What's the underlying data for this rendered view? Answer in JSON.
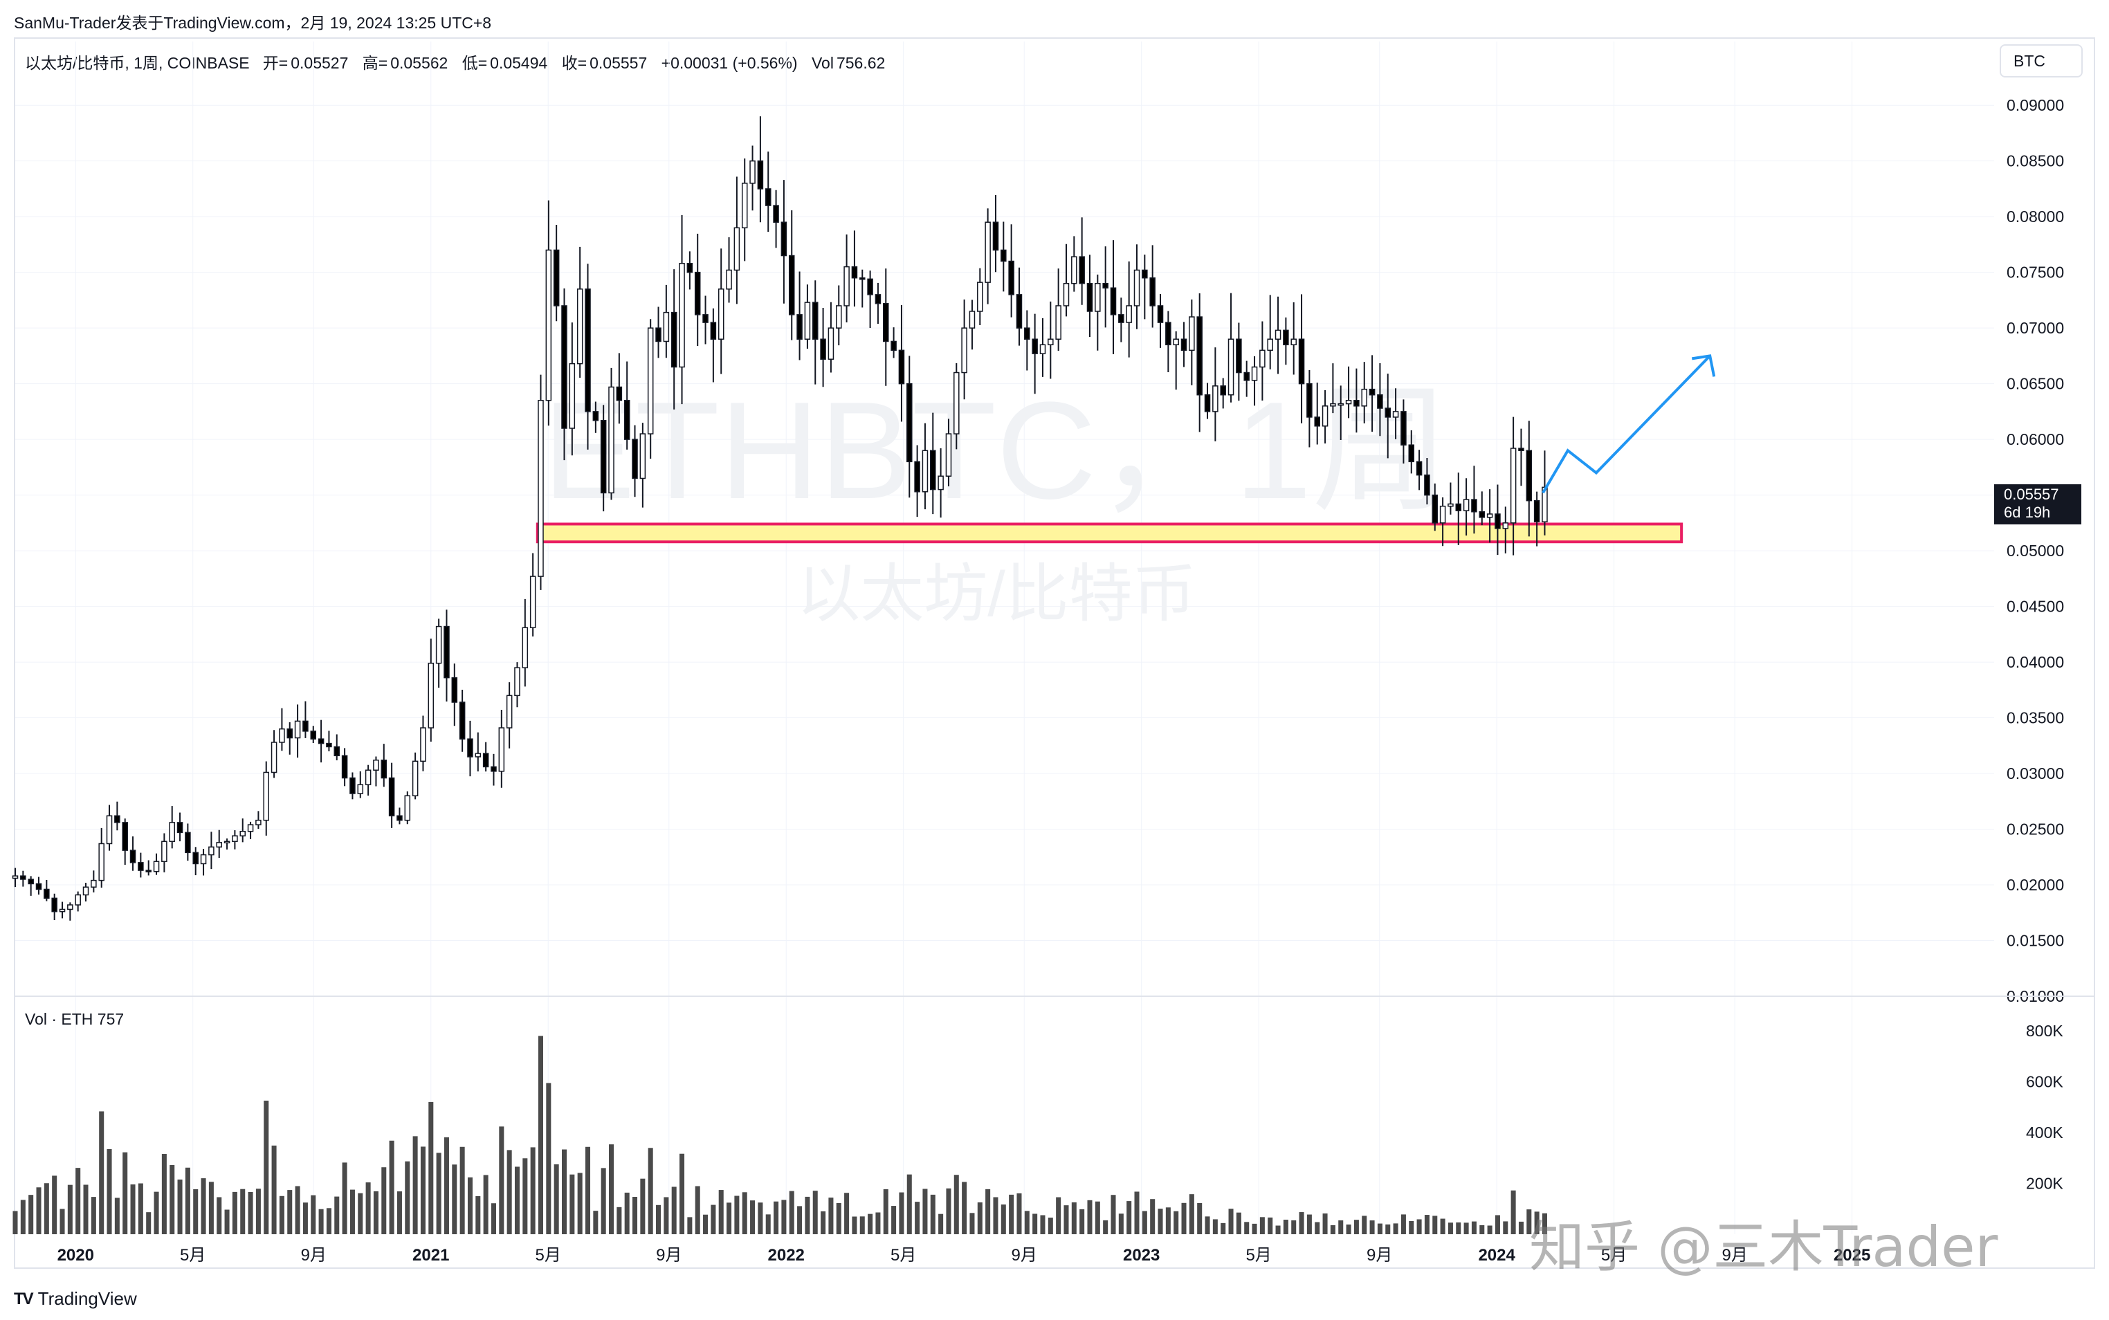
{
  "header": {
    "post_line": "SanMu-Trader发表于TradingView.com，2月 19, 2024 13:25 UTC+8"
  },
  "legend": {
    "symbol": "以太坊/比特币, 1周, COINBASE",
    "open_label": "开=",
    "open_value": "0.05527",
    "high_label": "高=",
    "high_value": "0.05562",
    "low_label": "低=",
    "low_value": "0.05494",
    "close_label": "收=",
    "close_value": "0.05557",
    "change": "+0.00031 (+0.56%)",
    "vol_label": "Vol",
    "vol_value": "756.62"
  },
  "currency_button": "BTC",
  "watermark": {
    "big": "ETHBTC，1周",
    "small": "以太坊/比特币"
  },
  "price_tag": {
    "price": "0.05557",
    "countdown": "6d 19h"
  },
  "volume_legend": "Vol · ETH  757",
  "footer_logo": "TradingView",
  "corner_watermark": "知乎 @三木Trader",
  "colors": {
    "up_body": "#ffffff",
    "down_body": "#000000",
    "wick": "#131722",
    "volume": "#4a4a4a",
    "support_fill": "#fff59d",
    "support_border": "#e91e63",
    "projection": "#2196f3",
    "grid": "#f0f3fa"
  },
  "chart_data": [
    {
      "type": "candlestick",
      "title": "以太坊/比特币, 1周, COINBASE",
      "y_axis_labels": [
        "0.09000",
        "0.08500",
        "0.08000",
        "0.07500",
        "0.07000",
        "0.06500",
        "0.06000",
        "0.05500",
        "0.05000",
        "0.04500",
        "0.04000",
        "0.03500",
        "0.03000",
        "0.02500",
        "0.02000",
        "0.01500",
        "0.01000"
      ],
      "ylim": [
        0.01,
        0.092
      ],
      "x_axis_labels": [
        {
          "label": "2020",
          "t": 2020.0
        },
        {
          "label": "5月",
          "t": 2020.33
        },
        {
          "label": "9月",
          "t": 2020.67
        },
        {
          "label": "2021",
          "t": 2021.0
        },
        {
          "label": "5月",
          "t": 2021.33
        },
        {
          "label": "9月",
          "t": 2021.67
        },
        {
          "label": "2022",
          "t": 2022.0
        },
        {
          "label": "5月",
          "t": 2022.33
        },
        {
          "label": "9月",
          "t": 2022.67
        },
        {
          "label": "2023",
          "t": 2023.0
        },
        {
          "label": "5月",
          "t": 2023.33
        },
        {
          "label": "9月",
          "t": 2023.67
        },
        {
          "label": "2024",
          "t": 2024.0
        },
        {
          "label": "5月",
          "t": 2024.33
        },
        {
          "label": "9月",
          "t": 2024.67
        },
        {
          "label": "2025",
          "t": 2025.0
        }
      ],
      "xlim": [
        2019.83,
        2025.4
      ],
      "closes_weekly": [
        0.0208,
        0.0205,
        0.0201,
        0.0196,
        0.0188,
        0.0176,
        0.0178,
        0.0182,
        0.0191,
        0.0198,
        0.0204,
        0.0237,
        0.0262,
        0.0256,
        0.0231,
        0.022,
        0.0213,
        0.0212,
        0.0221,
        0.0239,
        0.0256,
        0.0247,
        0.0229,
        0.0219,
        0.0227,
        0.0234,
        0.0238,
        0.0239,
        0.0244,
        0.0248,
        0.0254,
        0.0258,
        0.0301,
        0.0328,
        0.034,
        0.0332,
        0.0347,
        0.0338,
        0.0331,
        0.0327,
        0.0324,
        0.0316,
        0.0296,
        0.0282,
        0.029,
        0.0303,
        0.0312,
        0.0296,
        0.0262,
        0.0258,
        0.028,
        0.0311,
        0.0341,
        0.0399,
        0.0432,
        0.0386,
        0.0364,
        0.0331,
        0.0315,
        0.0318,
        0.0306,
        0.0302,
        0.0341,
        0.037,
        0.0395,
        0.0431,
        0.0477,
        0.0635,
        0.077,
        0.072,
        0.061,
        0.0668,
        0.0735,
        0.0625,
        0.0617,
        0.0552,
        0.0647,
        0.0635,
        0.06,
        0.0565,
        0.0605,
        0.07,
        0.0688,
        0.0714,
        0.0665,
        0.0758,
        0.075,
        0.0712,
        0.0705,
        0.069,
        0.0735,
        0.0752,
        0.079,
        0.083,
        0.085,
        0.0825,
        0.081,
        0.0795,
        0.0765,
        0.0712,
        0.069,
        0.0723,
        0.069,
        0.0672,
        0.07,
        0.072,
        0.0755,
        0.0745,
        0.0744,
        0.073,
        0.0722,
        0.0688,
        0.068,
        0.065,
        0.058,
        0.0553,
        0.059,
        0.0555,
        0.0567,
        0.0605,
        0.066,
        0.07,
        0.0715,
        0.0741,
        0.0795,
        0.077,
        0.076,
        0.073,
        0.07,
        0.069,
        0.0677,
        0.0685,
        0.069,
        0.072,
        0.074,
        0.0764,
        0.074,
        0.0715,
        0.074,
        0.0736,
        0.0712,
        0.0705,
        0.072,
        0.0752,
        0.0745,
        0.072,
        0.0705,
        0.0685,
        0.069,
        0.068,
        0.071,
        0.064,
        0.0625,
        0.0648,
        0.064,
        0.069,
        0.066,
        0.0653,
        0.0665,
        0.068,
        0.069,
        0.0698,
        0.0685,
        0.069,
        0.065,
        0.062,
        0.0612,
        0.063,
        0.0632,
        0.0632,
        0.0635,
        0.063,
        0.0645,
        0.064,
        0.0628,
        0.062,
        0.0625,
        0.0595,
        0.058,
        0.0568,
        0.055,
        0.0525,
        0.054,
        0.0542,
        0.0536,
        0.0546,
        0.0535,
        0.053,
        0.0533,
        0.052,
        0.0525,
        0.0592,
        0.059,
        0.0545,
        0.0526,
        0.0557
      ],
      "volume_axis_labels": [
        "800K",
        "600K",
        "400K",
        "200K"
      ],
      "volume_ylim": [
        0,
        800000
      ],
      "support_zone": [
        0.0508,
        0.0524
      ],
      "projection_path": [
        [
          2024.13,
          0.0552
        ],
        [
          2024.2,
          0.059
        ],
        [
          2024.28,
          0.057
        ],
        [
          2024.6,
          0.0675
        ]
      ]
    }
  ]
}
